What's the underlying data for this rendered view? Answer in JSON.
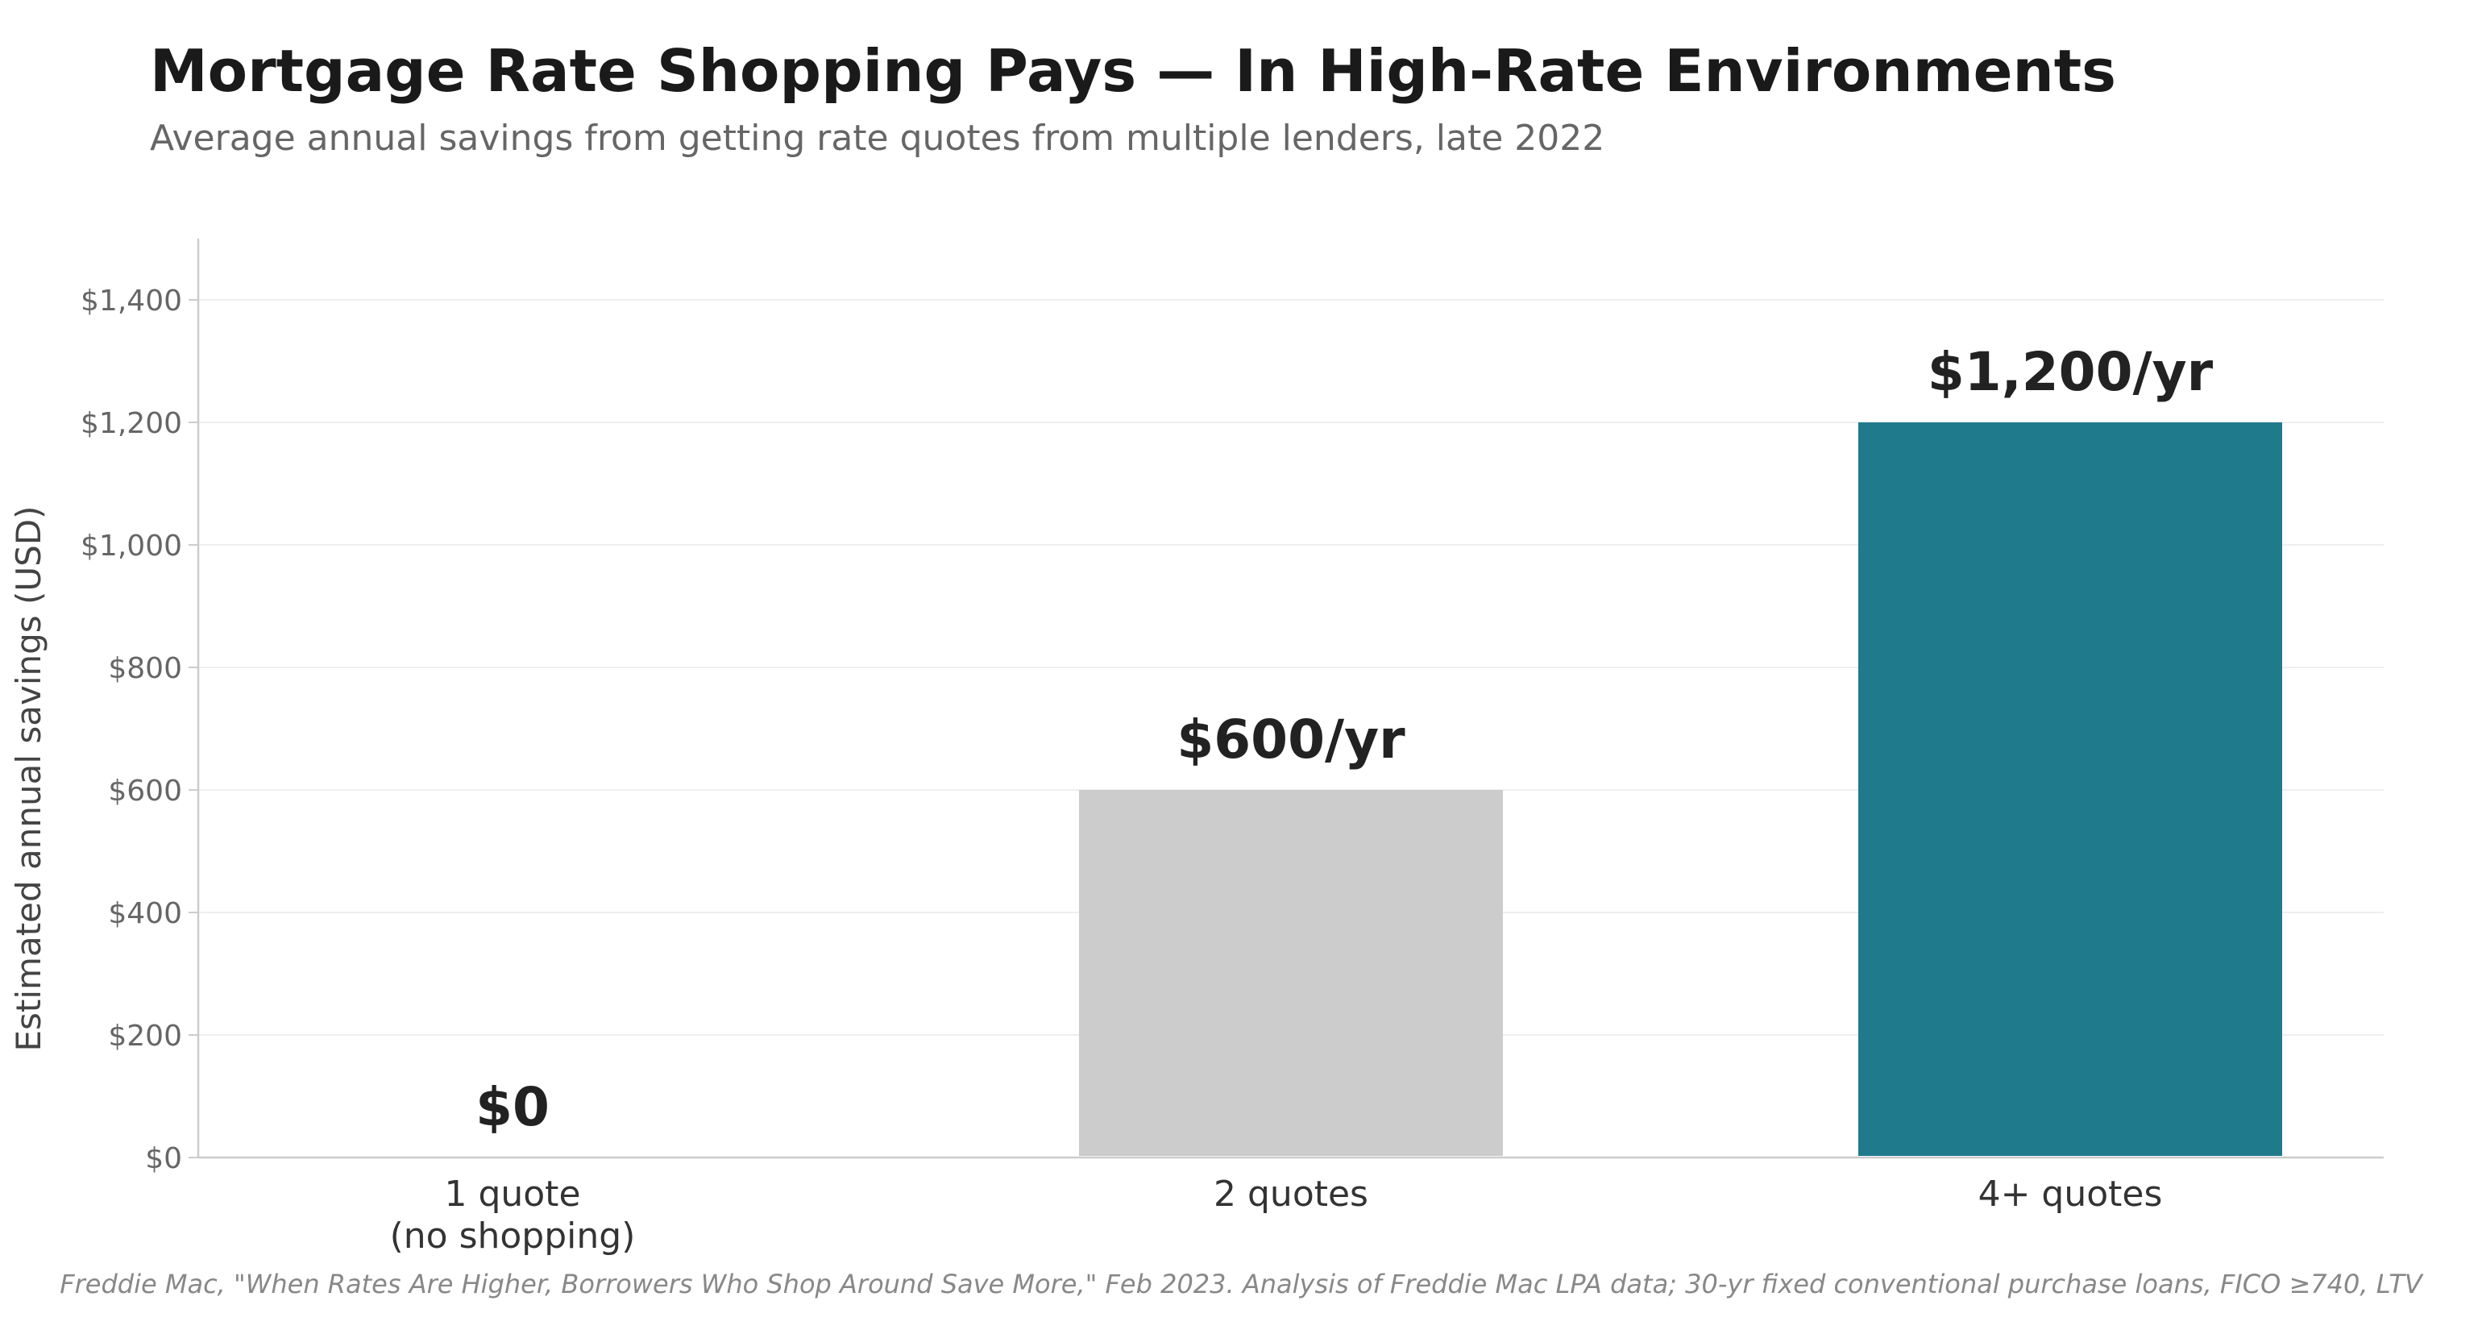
{
  "chart_data": {
    "type": "bar",
    "title": "Mortgage Rate Shopping Pays — In High-Rate Environments",
    "subtitle": "Average annual savings from getting rate quotes from multiple lenders, late 2022",
    "xlabel": "",
    "ylabel": "Estimated annual savings (USD)",
    "ylim": [
      0,
      1500
    ],
    "yticks": [
      0,
      200,
      400,
      600,
      800,
      1000,
      1200,
      1400
    ],
    "ytick_labels": [
      "$0",
      "$200",
      "$400",
      "$600",
      "$800",
      "$1,000",
      "$1,200",
      "$1,400"
    ],
    "categories": [
      "1 quote\n(no shopping)",
      "2 quotes",
      "4+ quotes"
    ],
    "values": [
      0,
      600,
      1200
    ],
    "data_labels": [
      "$0",
      "$600/yr",
      "$1,200/yr"
    ],
    "bar_colors": [
      "#cccccc",
      "#cccccc",
      "#1f7a8c"
    ],
    "grid": "horizontal",
    "legend": "none",
    "source": "Freddie Mac, \"When Rates Are Higher, Borrowers Who Shop Around Save More,\" Feb 2023. Analysis of Freddie Mac LPA data; 30-yr fixed conventional purchase loans, FICO ≥740, LTV"
  },
  "colors": {
    "title": "#1a1a1a",
    "subtitle": "#666666",
    "axis": "#cccccc",
    "grid": "#eeeeee",
    "tick_text": "#666666",
    "ylabel_text": "#444444",
    "category_text": "#333333",
    "data_label_text": "#222222",
    "footer_text": "#888888"
  }
}
